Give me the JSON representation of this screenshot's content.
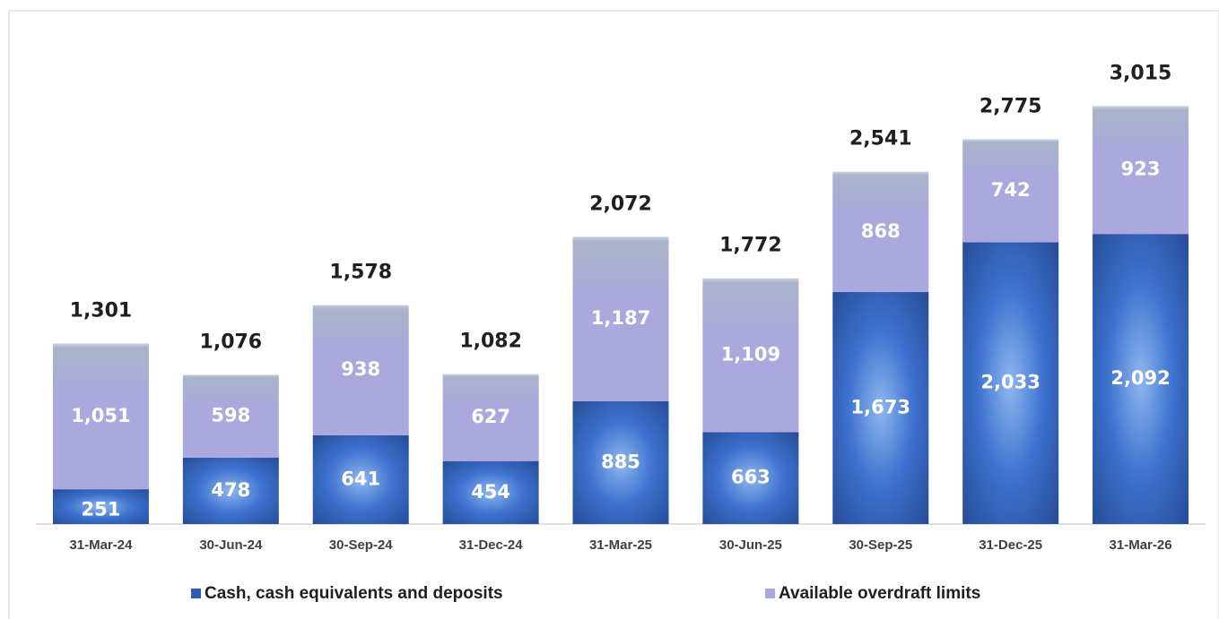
{
  "chart_data": {
    "type": "stacked_bar",
    "categories": [
      "31-Mar-24",
      "30-Jun-24",
      "30-Sep-24",
      "31-Dec-24",
      "31-Mar-25",
      "30-Jun-25",
      "30-Sep-25",
      "31-Dec-25",
      "31-Mar-26"
    ],
    "series": [
      {
        "name": "Cash, cash equivalents and deposits",
        "color": "#2e5db5",
        "values": [
          251,
          478,
          641,
          454,
          885,
          663,
          1673,
          2033,
          2092
        ],
        "value_labels": [
          "251",
          "478",
          "641",
          "454",
          "885",
          "663",
          "1,673",
          "2,033",
          "2,092"
        ]
      },
      {
        "name": "Available overdraft limits",
        "color": "#aaa8dc",
        "values": [
          1051,
          598,
          938,
          627,
          1187,
          1109,
          868,
          742,
          923
        ],
        "value_labels": [
          "1,051",
          "598",
          "938",
          "627",
          "1,187",
          "1,109",
          "868",
          "742",
          "923"
        ]
      }
    ],
    "totals": [
      1301,
      1076,
      1578,
      1082,
      2072,
      1772,
      2541,
      2775,
      3015
    ],
    "total_labels": [
      "1,301",
      "1,076",
      "1,578",
      "1,082",
      "2,072",
      "1,772",
      "2,541",
      "2,775",
      "3,015"
    ],
    "ylim": [
      0,
      3650
    ],
    "legend": "bottom"
  }
}
